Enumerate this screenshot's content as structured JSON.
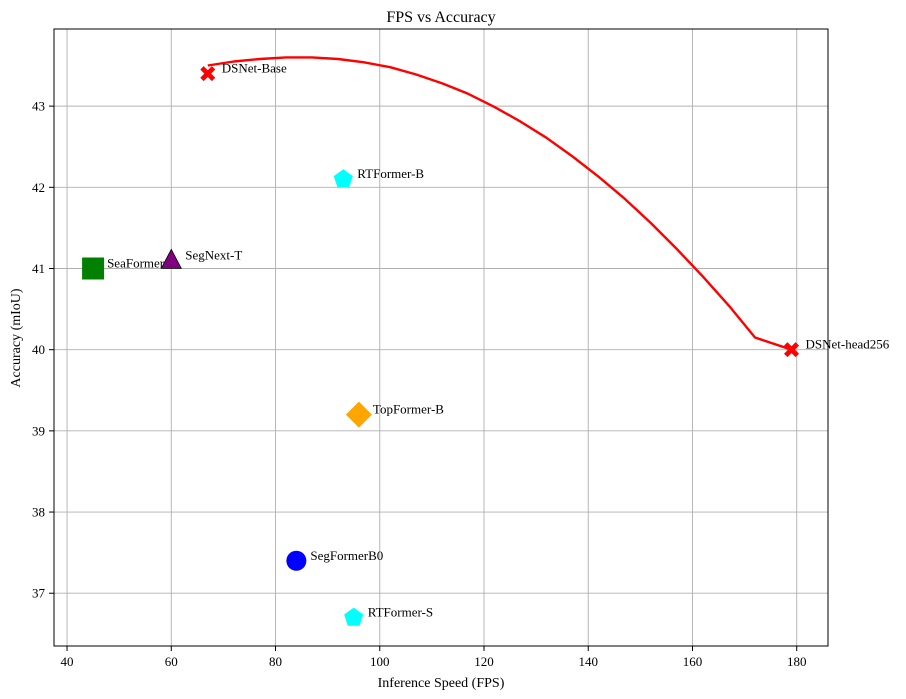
{
  "chart_data": {
    "type": "scatter",
    "title": "FPS vs Accuracy",
    "xlabel": "Inference Speed (FPS)",
    "ylabel": "Accuracy (mIoU)",
    "xlim": [
      37.5,
      186
    ],
    "ylim": [
      36.35,
      43.95
    ],
    "xticks": [
      40,
      60,
      80,
      100,
      120,
      140,
      160,
      180
    ],
    "yticks": [
      37,
      38,
      39,
      40,
      41,
      42,
      43
    ],
    "grid": true,
    "points": [
      {
        "label": "DSNet-Base",
        "x": 67,
        "y": 43.4,
        "marker": "x-thick",
        "color": "#ff0000"
      },
      {
        "label": "RTFormer-B",
        "x": 93,
        "y": 42.1,
        "marker": "pentagon",
        "color": "#00ffff"
      },
      {
        "label": "SeaFormer-B",
        "x": 45,
        "y": 41.0,
        "marker": "square",
        "color": "#008000"
      },
      {
        "label": "SegNext-T",
        "x": 60,
        "y": 41.1,
        "marker": "triangle",
        "color": "#800080"
      },
      {
        "label": "DSNet-head256",
        "x": 179,
        "y": 40.0,
        "marker": "x-thick",
        "color": "#ff0000"
      },
      {
        "label": "TopFormer-B",
        "x": 96,
        "y": 39.2,
        "marker": "diamond",
        "color": "#ffa500"
      },
      {
        "label": "SegFormerB0",
        "x": 84,
        "y": 37.4,
        "marker": "circle",
        "color": "#0000ff"
      },
      {
        "label": "RTFormer-S",
        "x": 95,
        "y": 36.7,
        "marker": "pentagon",
        "color": "#00ffff"
      }
    ],
    "curve": {
      "color": "#ff0000",
      "x": [
        67,
        72,
        77,
        82,
        87,
        92,
        97,
        102,
        107,
        112,
        117,
        122,
        127,
        132,
        137,
        142,
        147,
        152,
        157,
        162,
        167,
        172,
        179
      ],
      "y": [
        43.5,
        43.55,
        43.58,
        43.6,
        43.6,
        43.58,
        43.54,
        43.48,
        43.39,
        43.28,
        43.15,
        42.99,
        42.81,
        42.61,
        42.38,
        42.13,
        41.86,
        41.56,
        41.24,
        40.9,
        40.54,
        40.15,
        40.0
      ]
    }
  }
}
